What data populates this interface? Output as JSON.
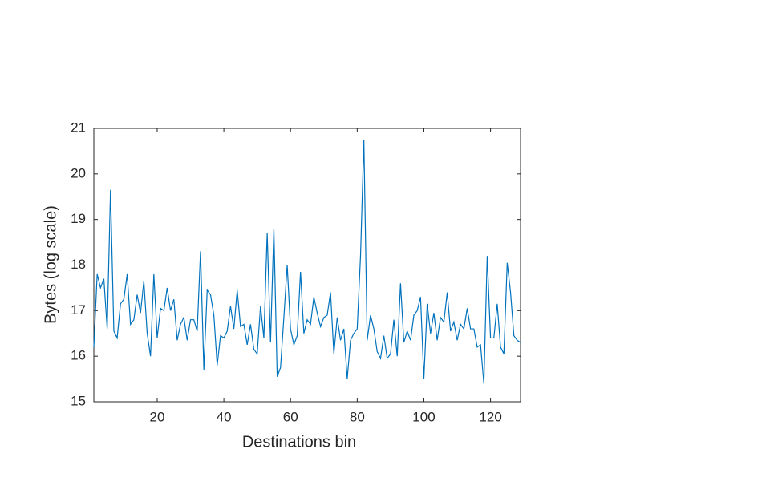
{
  "chart_data": {
    "type": "line",
    "xlabel": "Destinations bin",
    "ylabel": "Bytes (log scale)",
    "x": [
      1,
      2,
      3,
      4,
      5,
      6,
      7,
      8,
      9,
      10,
      11,
      12,
      13,
      14,
      15,
      16,
      17,
      18,
      19,
      20,
      21,
      22,
      23,
      24,
      25,
      26,
      27,
      28,
      29,
      30,
      31,
      32,
      33,
      34,
      35,
      36,
      37,
      38,
      39,
      40,
      41,
      42,
      43,
      44,
      45,
      46,
      47,
      48,
      49,
      50,
      51,
      52,
      53,
      54,
      55,
      56,
      57,
      58,
      59,
      60,
      61,
      62,
      63,
      64,
      65,
      66,
      67,
      68,
      69,
      70,
      71,
      72,
      73,
      74,
      75,
      76,
      77,
      78,
      79,
      80,
      81,
      82,
      83,
      84,
      85,
      86,
      87,
      88,
      89,
      90,
      91,
      92,
      93,
      94,
      95,
      96,
      97,
      98,
      99,
      100,
      101,
      102,
      103,
      104,
      105,
      106,
      107,
      108,
      109,
      110,
      111,
      112,
      113,
      114,
      115,
      116,
      117,
      118,
      119,
      120,
      121,
      122,
      123,
      124,
      125,
      126,
      127,
      128,
      129
    ],
    "series": [
      {
        "color": "#0072bd",
        "values": [
          16.2,
          17.8,
          17.5,
          17.7,
          16.6,
          19.65,
          16.55,
          16.4,
          17.15,
          17.25,
          17.8,
          16.7,
          16.8,
          17.35,
          16.95,
          17.65,
          16.5,
          16.0,
          17.8,
          16.4,
          17.05,
          17.0,
          17.5,
          17.0,
          17.25,
          16.35,
          16.7,
          16.85,
          16.35,
          16.8,
          16.8,
          16.55,
          18.3,
          15.7,
          17.45,
          17.35,
          16.9,
          15.8,
          16.45,
          16.4,
          16.55,
          17.1,
          16.6,
          17.45,
          16.65,
          16.7,
          16.25,
          16.7,
          16.15,
          16.05,
          17.1,
          16.4,
          18.7,
          16.3,
          18.8,
          15.55,
          15.75,
          16.85,
          18.0,
          16.6,
          16.25,
          16.45,
          17.85,
          16.5,
          16.8,
          16.7,
          17.3,
          16.95,
          16.65,
          16.85,
          16.9,
          17.4,
          16.05,
          16.85,
          16.35,
          16.6,
          15.5,
          16.35,
          16.5,
          16.6,
          18.2,
          20.75,
          16.35,
          16.9,
          16.6,
          16.1,
          15.95,
          16.45,
          15.95,
          16.05,
          16.8,
          16.0,
          17.6,
          16.3,
          16.55,
          16.35,
          16.9,
          17.0,
          17.3,
          15.5,
          17.15,
          16.5,
          16.95,
          16.35,
          16.85,
          16.75,
          17.4,
          16.55,
          16.75,
          16.35,
          16.7,
          16.6,
          17.05,
          16.6,
          16.6,
          16.2,
          16.25,
          15.4,
          18.2,
          16.4,
          16.4,
          17.15,
          16.2,
          16.05,
          18.05,
          17.4,
          16.45,
          16.35,
          16.3
        ]
      }
    ],
    "xlim": [
      1,
      129
    ],
    "xticks": [
      20,
      40,
      60,
      80,
      100,
      120
    ],
    "ylim": [
      15,
      21
    ],
    "yticks": [
      15,
      16,
      17,
      18,
      19,
      20,
      21
    ]
  }
}
